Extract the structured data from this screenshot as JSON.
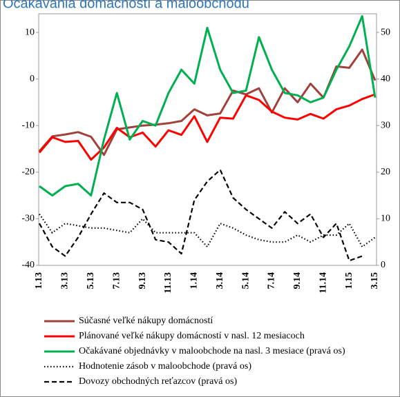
{
  "chart_data": {
    "type": "line",
    "title": "Očakávania domácností a maloobchodu",
    "categories": [
      "1.13",
      null,
      "3.13",
      null,
      "5.13",
      null,
      "7.13",
      null,
      "9.13",
      null,
      "11.13",
      null,
      "1.14",
      null,
      "3.14",
      null,
      "5.14",
      null,
      "7.14",
      null,
      "9.14",
      null,
      "11.14",
      null,
      "1.15",
      null,
      "3.15"
    ],
    "ylim": [
      -40,
      14
    ],
    "yticks": [
      -40,
      -30,
      -20,
      -10,
      0,
      10
    ],
    "y2lim": [
      0,
      54
    ],
    "y2ticks": [
      0,
      10,
      20,
      30,
      40,
      50
    ],
    "series": [
      {
        "name": "Súčasné veľké nákupy domácností",
        "color": "#a0413c",
        "style": "solid",
        "values": [
          -15.5,
          -12.3,
          -11.9,
          -11.4,
          -12.4,
          -16.3,
          -10.8,
          -10.4,
          -10,
          -9.8,
          -9.5,
          -9,
          -6.5,
          -7.8,
          -7.4,
          -2.5,
          -3.3,
          -2,
          -7.2,
          -2,
          -5,
          -1,
          -4,
          2.7,
          2.4,
          6.3,
          -0.3
        ]
      },
      {
        "name": "Plánované veľké nákupy domácností v nasl. 12 mesiacoch",
        "color": "#ff0000",
        "style": "solid",
        "values": [
          -15.8,
          -12.5,
          -13.5,
          -13.3,
          -17.3,
          -14.7,
          -10.5,
          -12.5,
          -11.5,
          -14.5,
          -11,
          -12,
          -8,
          -13.5,
          -8.3,
          -8.5,
          -3.5,
          -4.5,
          -7,
          -8.3,
          -8.7,
          -7.5,
          -8.5,
          -6.5,
          -5.7,
          -4.3,
          -3.3
        ]
      },
      {
        "name": "Očakávané objednávky v maloobchode na nasl. 3 mesiace (pravá os)",
        "color": "#00b050",
        "style": "solid",
        "axis": "y2",
        "values": [
          17,
          15,
          17,
          17.5,
          15,
          27,
          37,
          27,
          31,
          30,
          37,
          42,
          39,
          51,
          42,
          37,
          37.5,
          49,
          42,
          37,
          36.5,
          35,
          36,
          42,
          47,
          53.5,
          36
        ]
      },
      {
        "name": "Hodnotenie zásob v maloobchode (pravá os)",
        "color": "#000000",
        "style": "dotted",
        "axis": "y2",
        "values": [
          11,
          7,
          9,
          8.5,
          8,
          8,
          7.5,
          7,
          10,
          7,
          7,
          7,
          7,
          4,
          9,
          8,
          6.5,
          5.5,
          5,
          5,
          6.5,
          5,
          6.5,
          6.5,
          9,
          4,
          6
        ]
      },
      {
        "name": "Dovozy obchodných reťazcov (pravá os)",
        "color": "#000000",
        "style": "dashed",
        "axis": "y2",
        "values": [
          9,
          4,
          2,
          6,
          11,
          15.5,
          13.5,
          13.5,
          12,
          5.5,
          5,
          2.5,
          14,
          18,
          20.5,
          14.5,
          12,
          10,
          8,
          11.5,
          9,
          11,
          6,
          9,
          1,
          2,
          null
        ]
      }
    ]
  }
}
